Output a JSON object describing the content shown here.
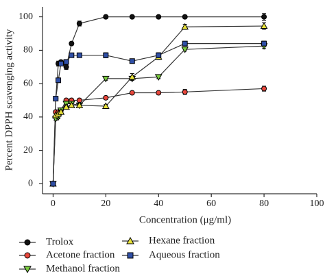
{
  "chart_data": {
    "type": "line",
    "xlabel": "Concentration (μg/ml)",
    "ylabel": "Percent DPPH scavenging activity",
    "x": [
      0,
      1,
      2,
      3,
      5,
      7,
      10,
      20,
      30,
      40,
      50,
      80
    ],
    "series": [
      {
        "name": "Trolox",
        "color": "#111111",
        "marker": "circle",
        "values": [
          0,
          51,
          72,
          73,
          70,
          84,
          96,
          100,
          100,
          100,
          100,
          100
        ],
        "errors": [
          0,
          1,
          1.5,
          1,
          1.5,
          1,
          1.5,
          1,
          0.5,
          0.5,
          0.5,
          2
        ]
      },
      {
        "name": "Acetone fraction",
        "color": "#e8473c",
        "marker": "circle",
        "values": [
          0,
          43,
          43,
          44,
          50,
          50,
          50,
          51.5,
          54.5,
          54.5,
          55,
          57
        ],
        "errors": [
          0,
          1,
          1,
          1,
          1,
          1,
          1,
          1,
          1,
          1,
          1.5,
          1.5
        ]
      },
      {
        "name": "Methanol fraction",
        "color": "#7acb3f",
        "marker": "triangle-down",
        "values": [
          0,
          39,
          40,
          44,
          48,
          48,
          47,
          63,
          63,
          64,
          80.5,
          82.5
        ],
        "errors": [
          0,
          1,
          1,
          1,
          1.5,
          1,
          1,
          1,
          1,
          1,
          1,
          1.5
        ]
      },
      {
        "name": "Hexane fraction",
        "color": "#e8e23a",
        "marker": "triangle-up",
        "values": [
          0,
          41,
          42,
          43,
          46,
          47,
          47,
          46.5,
          64,
          76,
          94,
          94.5
        ],
        "errors": [
          0,
          1,
          1,
          1,
          1,
          1,
          1,
          1,
          2,
          1.5,
          1.5,
          2
        ]
      },
      {
        "name": "Aqueous fraction",
        "color": "#2f4fa6",
        "marker": "square",
        "values": [
          0,
          51,
          62,
          72,
          73,
          77,
          77,
          77,
          73.5,
          77,
          84,
          84
        ],
        "errors": [
          0,
          1,
          1,
          1,
          1,
          1,
          1,
          1.5,
          1,
          1.5,
          1,
          1.5
        ]
      }
    ],
    "line_color": "#333333",
    "xlim": [
      -4,
      100
    ],
    "xticks": [
      0,
      20,
      40,
      60,
      80,
      100
    ],
    "ylim": [
      -6,
      106
    ],
    "yticks": [
      0,
      20,
      40,
      60,
      80,
      100
    ]
  }
}
